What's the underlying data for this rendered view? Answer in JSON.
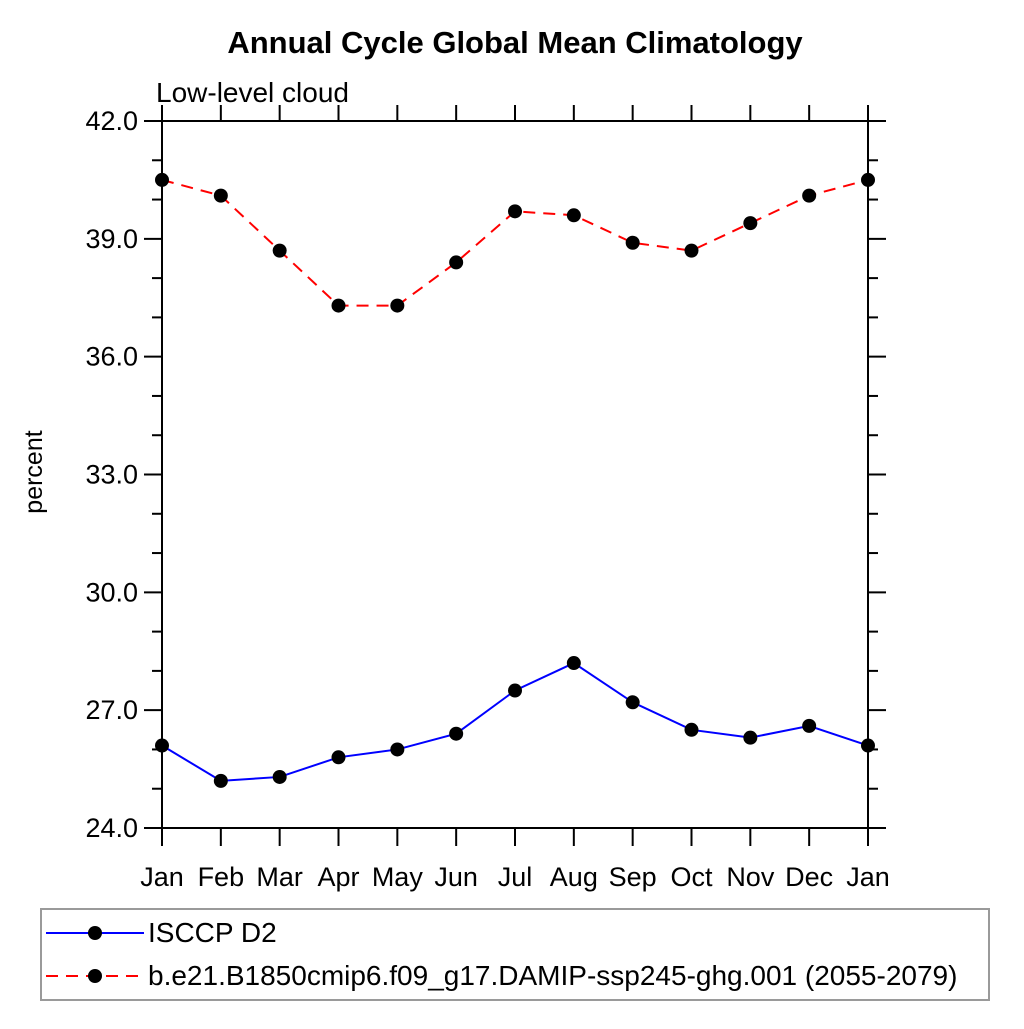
{
  "page": {
    "background": "#ffffff"
  },
  "chart_data": {
    "type": "line",
    "title": "Annual Cycle Global Mean Climatology",
    "subtitle": "Low-level cloud",
    "ylabel": "percent",
    "categories": [
      "Jan",
      "Feb",
      "Mar",
      "Apr",
      "May",
      "Jun",
      "Jul",
      "Aug",
      "Sep",
      "Oct",
      "Nov",
      "Dec",
      "Jan"
    ],
    "ylim": [
      24.0,
      42.0
    ],
    "y_major_step": 3.0,
    "y_minor_step": 1.0,
    "y_tick_decimals": 1,
    "grid": false,
    "frame": "box-with-outward-ticks",
    "legend_position": "bottom-left-box",
    "marker_color": "#000000",
    "series": [
      {
        "name": "ISCCP D2",
        "color": "#0000ff",
        "dash": "solid",
        "marker": "circle",
        "values": [
          26.1,
          25.2,
          25.3,
          25.8,
          26.0,
          26.4,
          27.5,
          28.2,
          27.2,
          26.5,
          26.3,
          26.6,
          26.1
        ]
      },
      {
        "name": "b.e21.B1850cmip6.f09_g17.DAMIP-ssp245-ghg.001 (2055-2079)",
        "color": "#ff0000",
        "dash": "dashed",
        "marker": "circle",
        "values": [
          40.5,
          40.1,
          38.7,
          37.3,
          37.3,
          38.4,
          39.7,
          39.6,
          38.9,
          38.7,
          39.4,
          40.1,
          40.5
        ]
      }
    ]
  }
}
